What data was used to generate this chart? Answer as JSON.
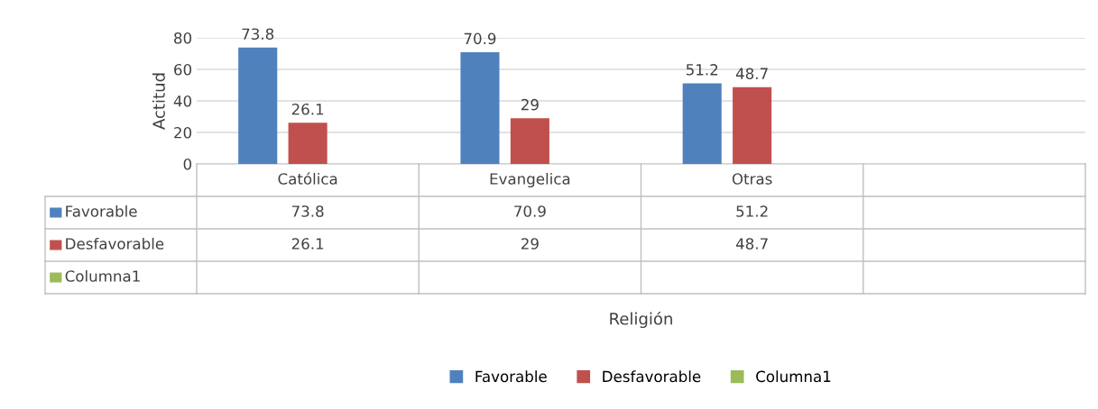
{
  "chart_data": {
    "type": "bar",
    "ylabel": "Actitud",
    "categories": [
      "Católica",
      "Evangelica",
      "Otras",
      null
    ],
    "series": [
      {
        "name": "Favorable",
        "color": "#4f81bd",
        "values": [
          73.8,
          70.9,
          51.2,
          null
        ],
        "value_labels": [
          "73.8",
          "70.9",
          "51.2",
          null
        ]
      },
      {
        "name": "Desfavorable",
        "color": "#c0504d",
        "values": [
          26.1,
          29,
          48.7,
          null
        ],
        "value_labels": [
          "26.1",
          "29",
          "48.7",
          null
        ]
      },
      {
        "name": "Columna1",
        "color": "#9bbb59",
        "values": [
          null,
          null,
          null,
          null
        ]
      }
    ],
    "annotations": [
      "Religión",
      "73.8",
      "70.9",
      "51.2",
      "26.1",
      "29",
      "48.7"
    ],
    "ylim": [
      0,
      80
    ],
    "yticks": [
      0,
      20,
      40,
      60,
      80
    ],
    "grid": "y",
    "legend": "bottom"
  }
}
